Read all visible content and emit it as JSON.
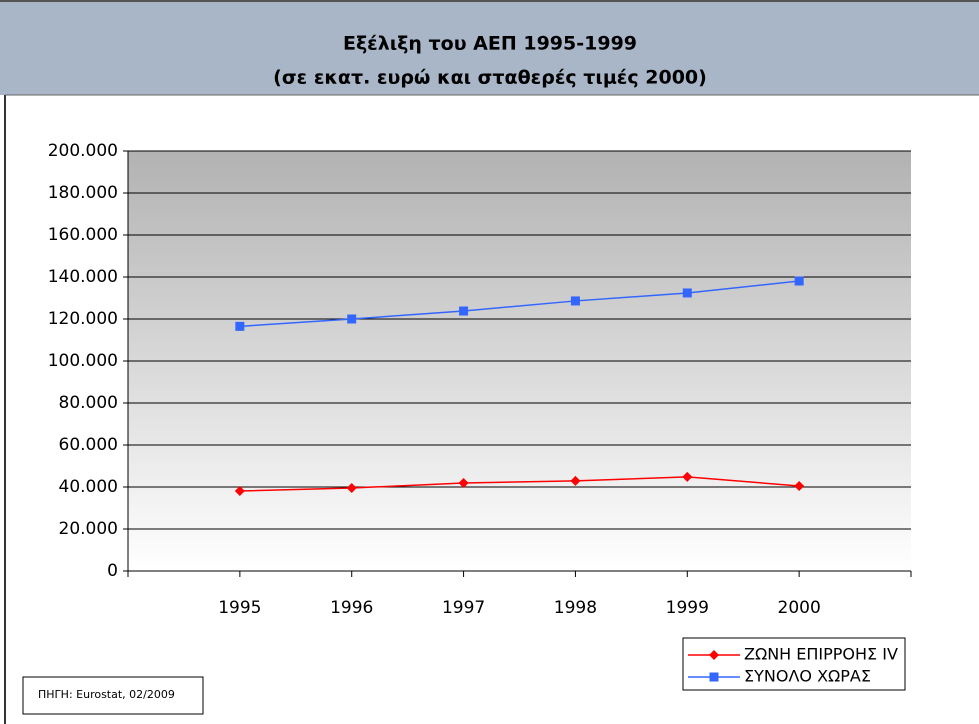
{
  "chart_data": {
    "type": "line",
    "title": "Εξέλιξη του ΑΕΠ 1995-1999",
    "subtitle": "(σε εκατ. ευρώ και σταθερές τιμές 2000)",
    "categories": [
      "1995",
      "1996",
      "1997",
      "1998",
      "1999",
      "2000"
    ],
    "series": [
      {
        "name": "ΖΩΝΗ ΕΠΙΡΡΟΗΣ IV",
        "color": "#ff0000",
        "marker": "diamond",
        "values": [
          38100,
          39500,
          41900,
          42900,
          44800,
          40500
        ]
      },
      {
        "name": "ΣΥΝΟΛΟ ΧΩΡΑΣ",
        "color": "#3366ff",
        "marker": "square",
        "values": [
          116500,
          120000,
          123800,
          128600,
          132400,
          138100
        ]
      }
    ],
    "ylim": [
      0,
      200000
    ],
    "yticks": [
      0,
      {
        "value": 20000,
        "label": "20.000"
      },
      {
        "value": 40000,
        "label": "40.000"
      },
      {
        "value": 60000,
        "label": "60.000"
      },
      {
        "value": 80000,
        "label": "80.000"
      },
      {
        "value": 100000,
        "label": "100.000"
      },
      {
        "value": 120000,
        "label": "120.000"
      },
      {
        "value": 140000,
        "label": "140.000"
      },
      {
        "value": 160000,
        "label": "160.000"
      },
      {
        "value": 180000,
        "label": "180.000"
      },
      {
        "value": 200000,
        "label": "200.000"
      }
    ],
    "grid": true,
    "legend": "bottom-right",
    "source": "ΠΗΓΗ: Eurostat, 02/2009"
  }
}
